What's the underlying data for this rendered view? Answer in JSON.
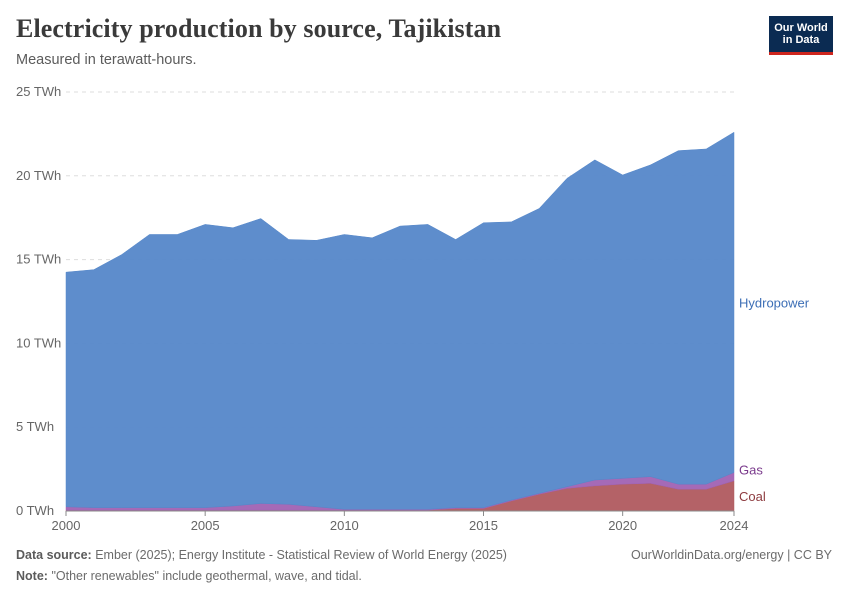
{
  "header": {
    "title": "Electricity production by source, Tajikistan",
    "subtitle": "Measured in terawatt-hours."
  },
  "logo": {
    "line1": "Our World",
    "line2": "in Data"
  },
  "footer": {
    "source_label": "Data source:",
    "source_text": "Ember (2025); Energy Institute - Statistical Review of World Energy (2025)",
    "url": "OurWorldinData.org/energy | CC BY",
    "note_label": "Note:",
    "note_text": "\"Other renewables\" include geothermal, wave, and tidal."
  },
  "colors": {
    "hydropower": "#5587c9",
    "gas": "#a062b3",
    "coal": "#b05a5f",
    "hydropower_label": "#3d6fb6",
    "gas_label": "#7a3a8c",
    "coal_label": "#8d3b3f"
  },
  "chart_data": {
    "type": "area",
    "stacked": true,
    "title": "Electricity production by source, Tajikistan",
    "ylabel": "TWh",
    "ylim": [
      0,
      25
    ],
    "yticks": [
      0,
      5,
      10,
      15,
      20,
      25
    ],
    "ytick_labels": [
      "0 TWh",
      "5 TWh",
      "10 TWh",
      "15 TWh",
      "20 TWh",
      "25 TWh"
    ],
    "xlim": [
      2000,
      2024
    ],
    "xticks": [
      2000,
      2005,
      2010,
      2015,
      2020,
      2024
    ],
    "xtick_labels": [
      "2000",
      "2005",
      "2010",
      "2015",
      "2020",
      "2024"
    ],
    "x": [
      2000,
      2001,
      2002,
      2003,
      2004,
      2005,
      2006,
      2007,
      2008,
      2009,
      2010,
      2011,
      2012,
      2013,
      2014,
      2015,
      2016,
      2017,
      2018,
      2019,
      2020,
      2021,
      2022,
      2023,
      2024
    ],
    "series": [
      {
        "name": "Coal",
        "label": "Coal",
        "values": [
          0.05,
          0.05,
          0.05,
          0.05,
          0.05,
          0.05,
          0.05,
          0.05,
          0.05,
          0.05,
          0.05,
          0.05,
          0.05,
          0.05,
          0.15,
          0.15,
          0.6,
          1.0,
          1.35,
          1.5,
          1.6,
          1.65,
          1.3,
          1.3,
          1.8
        ]
      },
      {
        "name": "Gas",
        "label": "Gas",
        "values": [
          0.2,
          0.15,
          0.15,
          0.15,
          0.15,
          0.15,
          0.25,
          0.4,
          0.35,
          0.2,
          0.05,
          0.05,
          0.05,
          0.05,
          0.05,
          0.05,
          0.05,
          0.05,
          0.1,
          0.35,
          0.35,
          0.4,
          0.3,
          0.3,
          0.5
        ]
      },
      {
        "name": "Hydropower",
        "label": "Hydropower",
        "values": [
          14.0,
          14.2,
          15.1,
          16.3,
          16.3,
          16.9,
          16.6,
          17.0,
          15.8,
          15.9,
          16.4,
          16.2,
          16.9,
          17.0,
          16.0,
          17.0,
          16.6,
          17.0,
          18.4,
          19.1,
          18.1,
          18.6,
          19.9,
          20.0,
          20.3
        ]
      }
    ]
  }
}
